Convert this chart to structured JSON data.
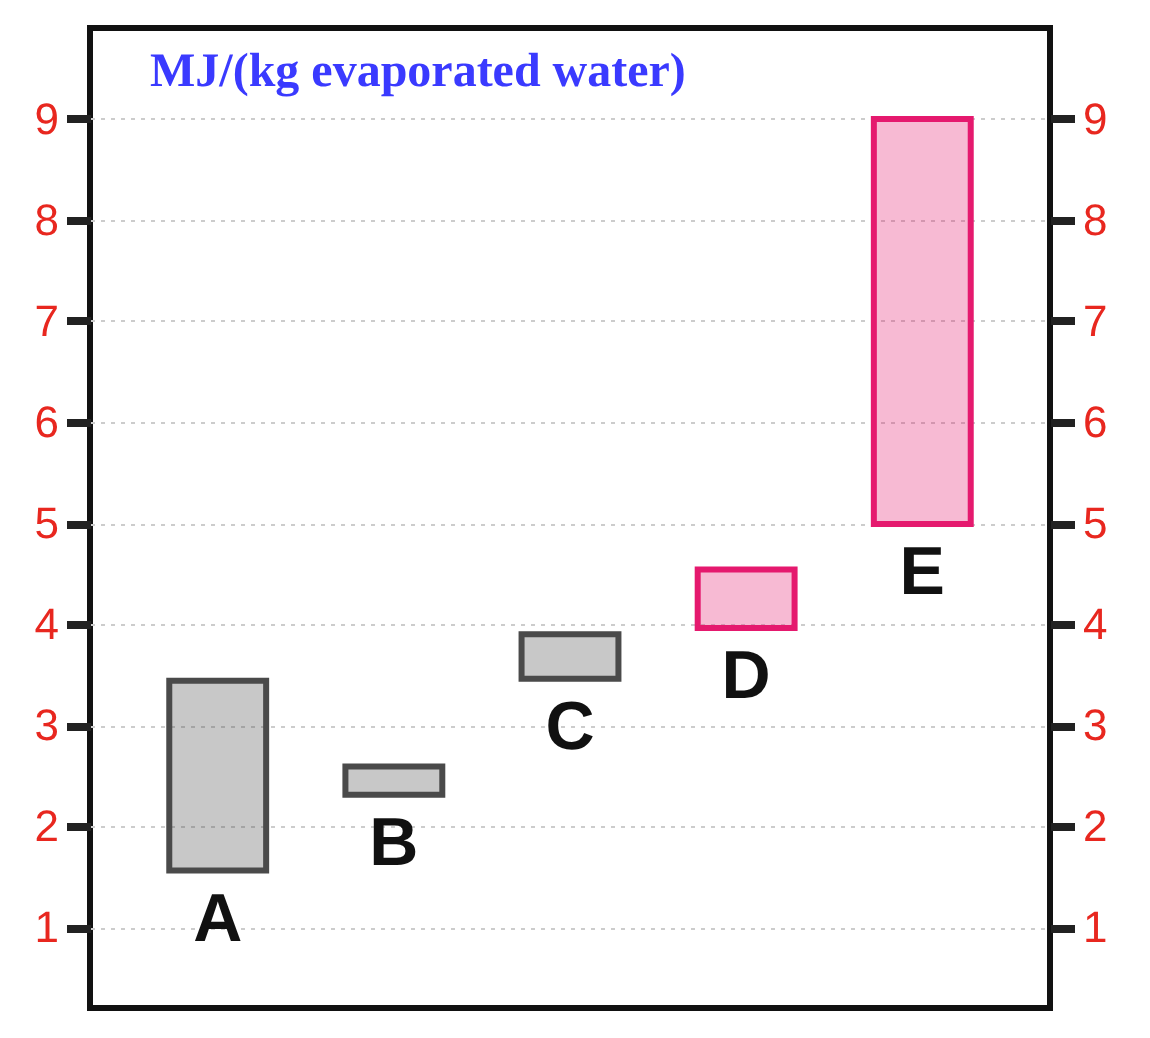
{
  "chart_data": {
    "type": "bar",
    "title": "MJ/(kg evaporated water)",
    "categories": [
      "A",
      "B",
      "C",
      "D",
      "E"
    ],
    "base": [
      1.56,
      2.31,
      3.46,
      3.96,
      4.99
    ],
    "values": [
      1.88,
      0.28,
      0.44,
      0.58,
      4.01
    ],
    "colors": [
      "#4a4a4a",
      "#4a4a4a",
      "#4a4a4a",
      "#e5196e",
      "#e5196e"
    ],
    "ylim": [
      0.2,
      9.9
    ],
    "yticks": [
      1,
      2,
      3,
      4,
      5,
      6,
      7,
      8,
      9
    ],
    "y2lim": [
      0.2,
      9.9
    ],
    "y2ticks": [
      1,
      2,
      3,
      4,
      5,
      6,
      7,
      8,
      9
    ],
    "grid": "y"
  }
}
